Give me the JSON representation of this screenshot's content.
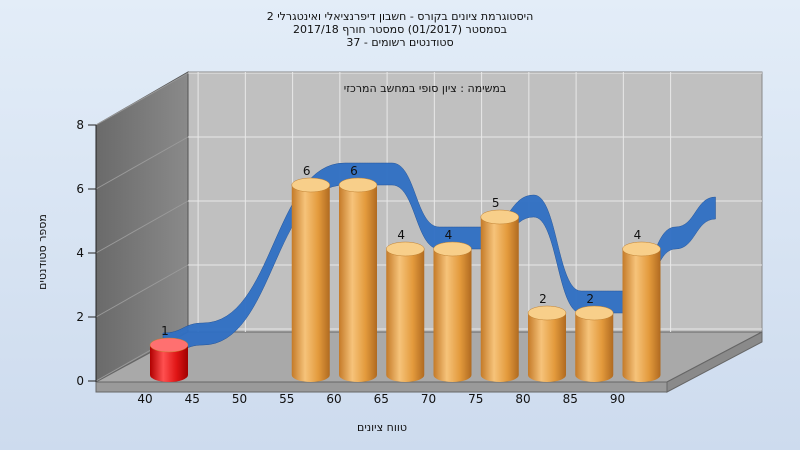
{
  "chart_data": {
    "type": "bar",
    "title_lines": [
      "היסטוגרמת ציונים בקורס - חשבון דיפרנציאלי ואינטגרלי 2",
      "בסמסטר  (01/2017)  סמסטר חורף  2017/18",
      "סטודנטים רשומים - 37"
    ],
    "subtitle": "במשימה : ציון סופי במחשב המרכזי",
    "xlabel": "טווח ציונים",
    "ylabel": "מספר סטודנטים",
    "x_ticks": [
      "40",
      "45",
      "50",
      "55",
      "60",
      "65",
      "70",
      "75",
      "80",
      "85",
      "90"
    ],
    "y_ticks": [
      "0",
      "2",
      "4",
      "6",
      "8"
    ],
    "ylim": [
      0,
      8
    ],
    "bars": [
      {
        "range_start": 40,
        "value": 1,
        "label": "1",
        "color": "#e01515"
      },
      {
        "range_start": 55,
        "value": 6,
        "label": "6",
        "color": "#e8a040"
      },
      {
        "range_start": 60,
        "value": 6,
        "label": "6",
        "color": "#e8a040"
      },
      {
        "range_start": 65,
        "value": 4,
        "label": "4",
        "color": "#e8a040"
      },
      {
        "range_start": 70,
        "value": 4,
        "label": "4",
        "color": "#e8a040"
      },
      {
        "range_start": 75,
        "value": 5,
        "label": "5",
        "color": "#e8a040"
      },
      {
        "range_start": 80,
        "value": 2,
        "label": "2",
        "color": "#e8a040"
      },
      {
        "range_start": 85,
        "value": 2,
        "label": "2",
        "color": "#e8a040"
      },
      {
        "range_start": 90,
        "value": 4,
        "label": "4",
        "color": "#e8a040"
      }
    ],
    "trend_ribbon_color": "#2f6fc4",
    "grid": true,
    "style": "3d-cylinder"
  }
}
